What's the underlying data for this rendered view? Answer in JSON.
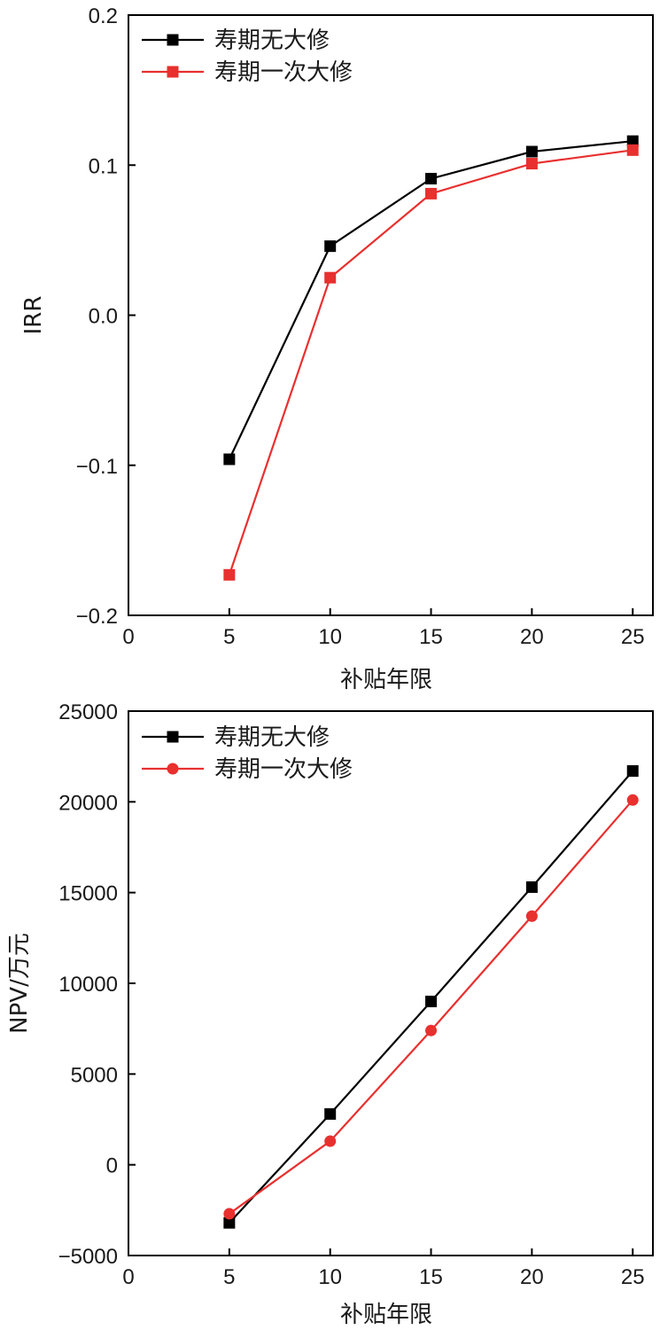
{
  "chart_data": [
    {
      "type": "line",
      "x": [
        5,
        10,
        15,
        20,
        25
      ],
      "series": [
        {
          "name": "寿期无大修",
          "values": [
            -0.096,
            0.046,
            0.091,
            0.109,
            0.116
          ],
          "color": "#000000",
          "marker": "square"
        },
        {
          "name": "寿期一次大修",
          "values": [
            -0.173,
            0.025,
            0.081,
            0.101,
            0.11
          ],
          "color": "#e8302f",
          "marker": "square"
        }
      ],
      "xlabel": "补贴年限",
      "ylabel": "IRR",
      "xlim": [
        0,
        26
      ],
      "ylim": [
        -0.2,
        0.2
      ],
      "xticks": [
        0,
        5,
        10,
        15,
        20,
        25
      ],
      "yticks": [
        -0.2,
        -0.1,
        0.0,
        0.1,
        0.2
      ],
      "ytick_labels": [
        "−0.2",
        "−0.1",
        "0.0",
        "0.1",
        "0.2"
      ],
      "xtick_labels": [
        "0",
        "5",
        "10",
        "15",
        "20",
        "25"
      ],
      "legend": "top-left",
      "grid": false
    },
    {
      "type": "line",
      "x": [
        5,
        10,
        15,
        20,
        25
      ],
      "series": [
        {
          "name": "寿期无大修",
          "values": [
            -3200,
            2800,
            9000,
            15300,
            21700
          ],
          "color": "#000000",
          "marker": "square"
        },
        {
          "name": "寿期一次大修",
          "values": [
            -2700,
            1300,
            7400,
            13700,
            20100
          ],
          "color": "#e8302f",
          "marker": "circle"
        }
      ],
      "xlabel": "补贴年限",
      "ylabel": "NPV/万元",
      "xlim": [
        0,
        26
      ],
      "ylim": [
        -5000,
        25000
      ],
      "xticks": [
        0,
        5,
        10,
        15,
        20,
        25
      ],
      "yticks": [
        -5000,
        0,
        5000,
        10000,
        15000,
        20000,
        25000
      ],
      "ytick_labels": [
        "−5000",
        "0",
        "5000",
        "10000",
        "15000",
        "20000",
        "25000"
      ],
      "xtick_labels": [
        "0",
        "5",
        "10",
        "15",
        "20",
        "25"
      ],
      "legend": "top-left",
      "grid": false
    }
  ]
}
